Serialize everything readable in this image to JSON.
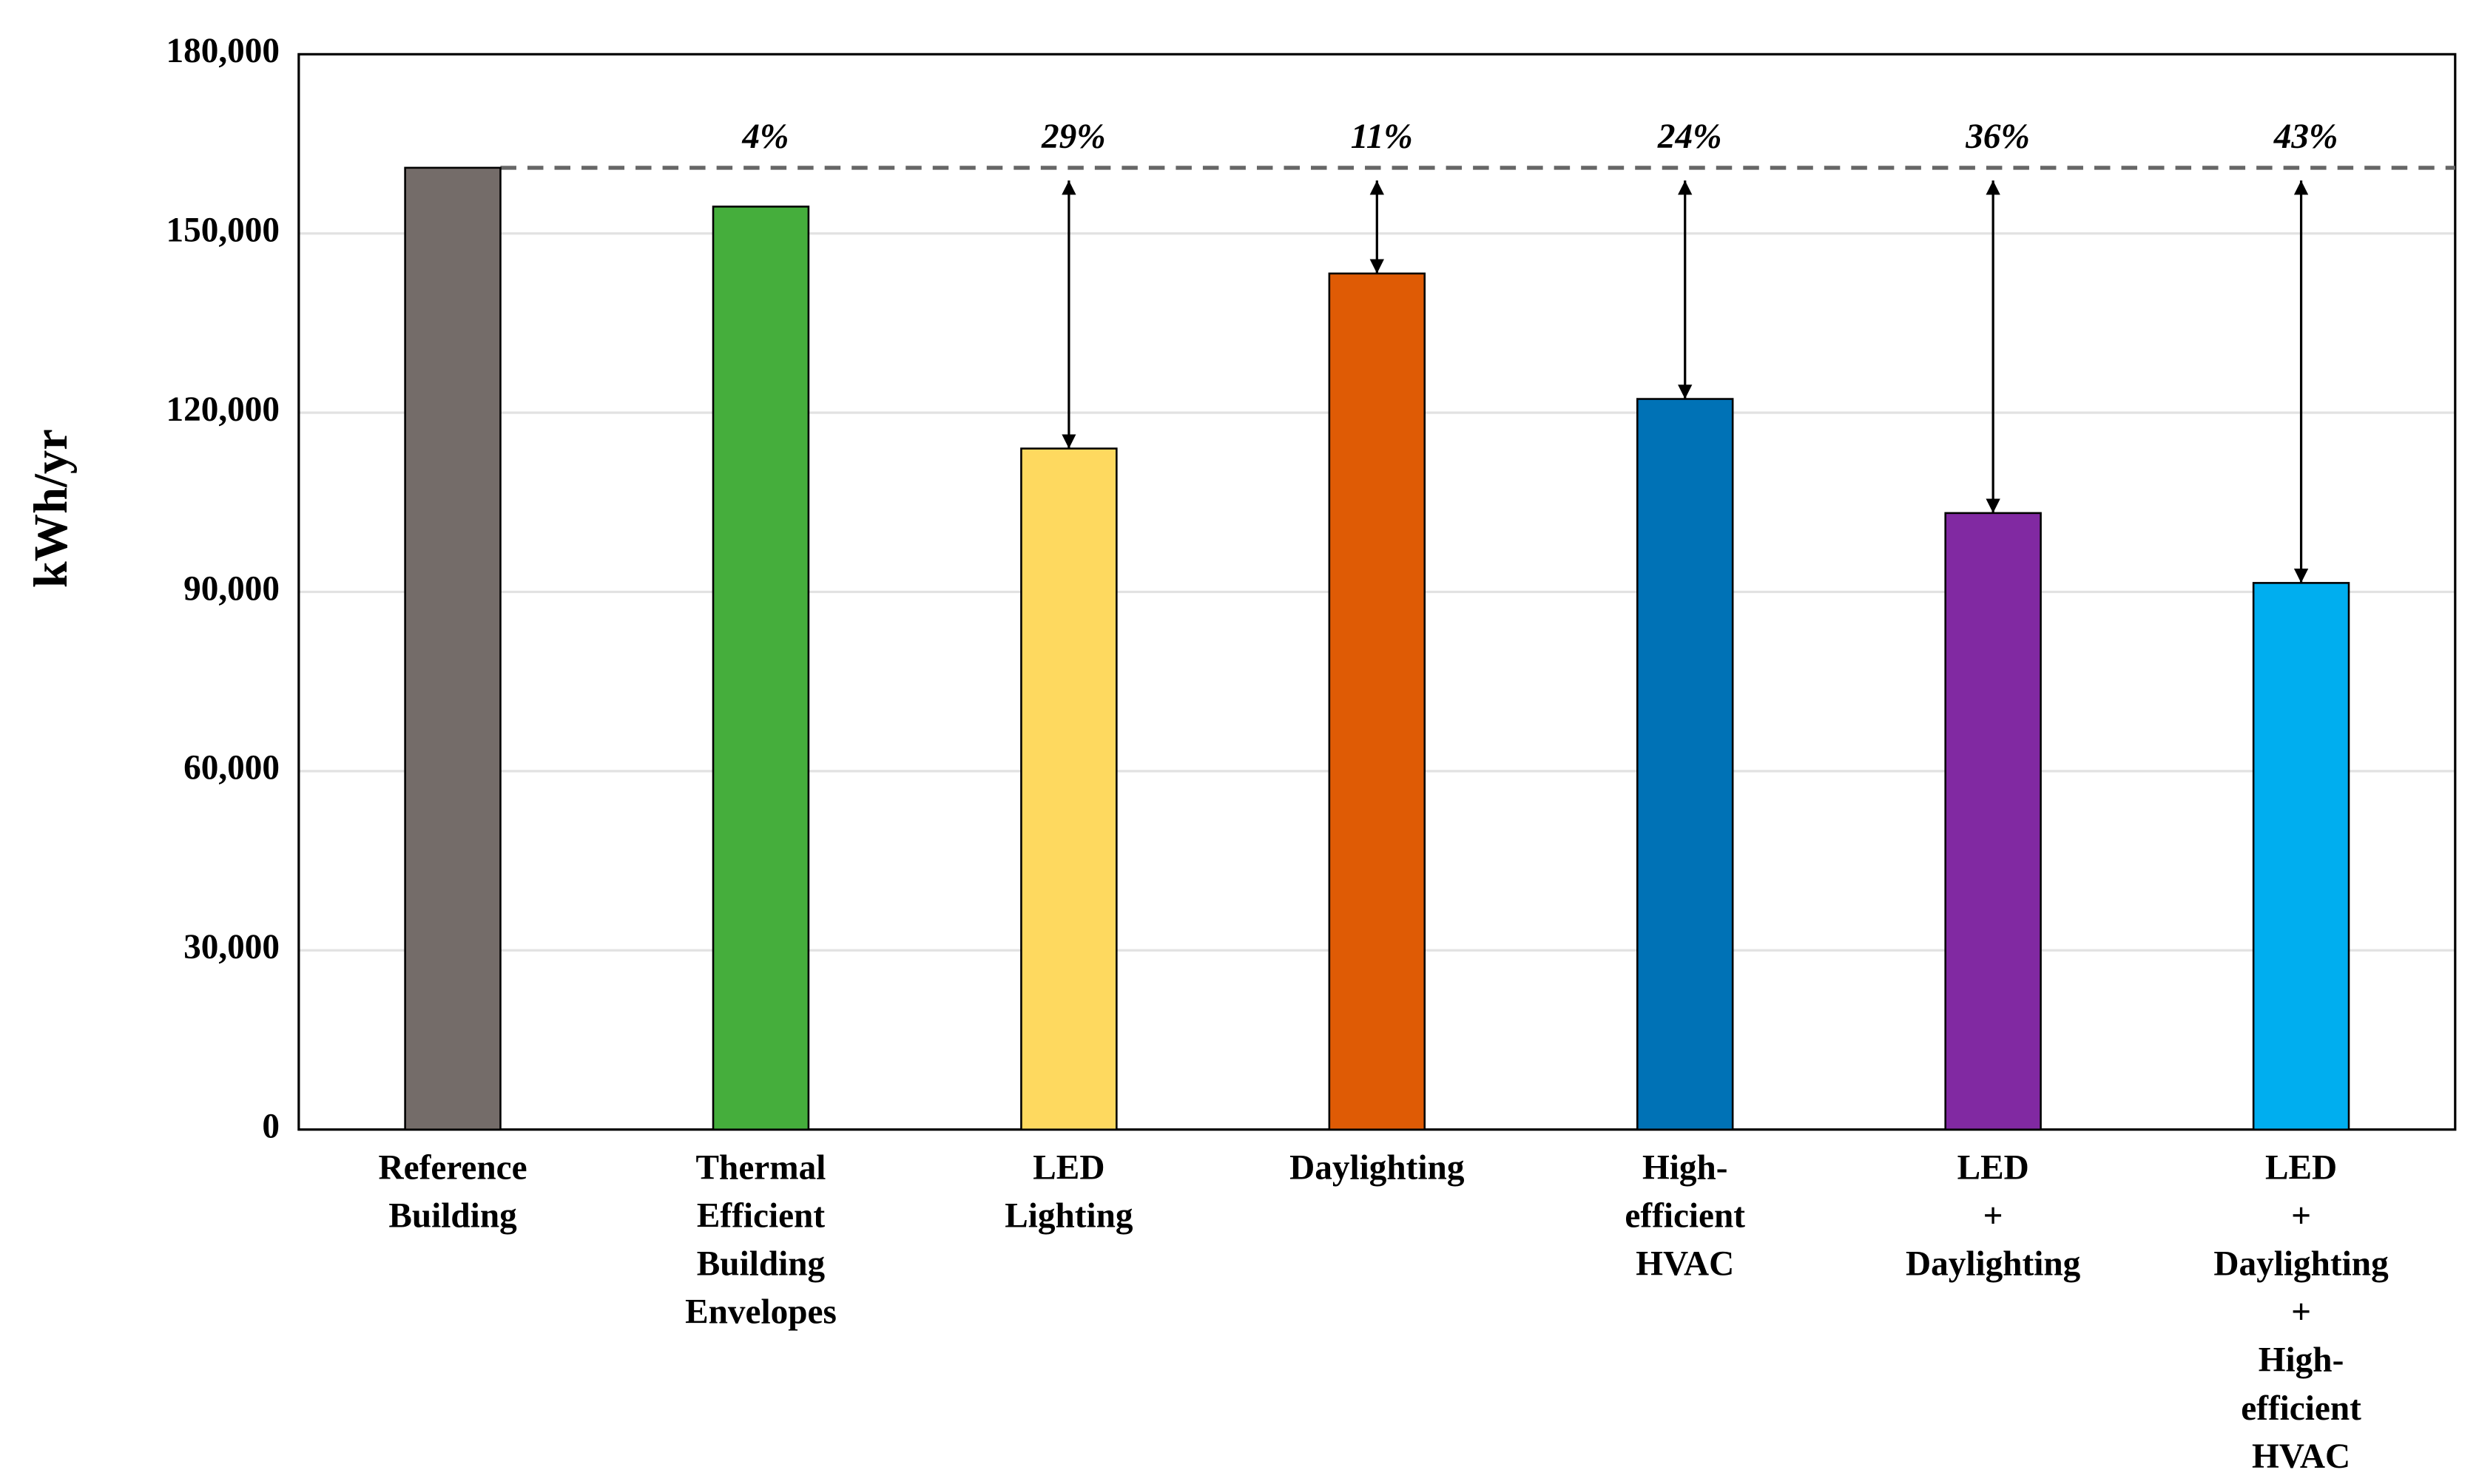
{
  "chart_data": {
    "type": "bar",
    "y_label": "kWh/yr",
    "categories": [
      [
        "Reference",
        "Building"
      ],
      [
        "Thermal",
        "Efficient",
        "Building",
        "Envelopes"
      ],
      [
        "LED",
        "Lighting"
      ],
      [
        "Daylighting"
      ],
      [
        "High-",
        "efficient",
        "HVAC"
      ],
      [
        "LED",
        "+",
        "Daylighting"
      ],
      [
        "LED",
        "+",
        "Daylighting",
        "+",
        "High-",
        "efficient",
        "HVAC"
      ]
    ],
    "values": [
      161000,
      154500,
      114000,
      143300,
      122300,
      103200,
      91500
    ],
    "colors": [
      "#746c69",
      "#45ae3c",
      "#fed95f",
      "#df5b05",
      "#0072b6",
      "#8129a2",
      "#00aeef"
    ],
    "annotations": [
      null,
      "4%",
      "29%",
      "11%",
      "24%",
      "36%",
      "43%"
    ],
    "arrows": [
      false,
      false,
      true,
      true,
      true,
      true,
      true
    ],
    "ylim": [
      0,
      180000
    ],
    "yticks": [
      0,
      {
        "value": 30000,
        "label": "30,000"
      },
      {
        "value": 60000,
        "label": "60,000"
      },
      {
        "value": 90000,
        "label": "90,000"
      },
      {
        "value": 120000,
        "label": "120,000"
      },
      {
        "value": 150000,
        "label": "150,000"
      },
      {
        "value": 180000,
        "label": "180,000"
      }
    ],
    "grid": true
  }
}
